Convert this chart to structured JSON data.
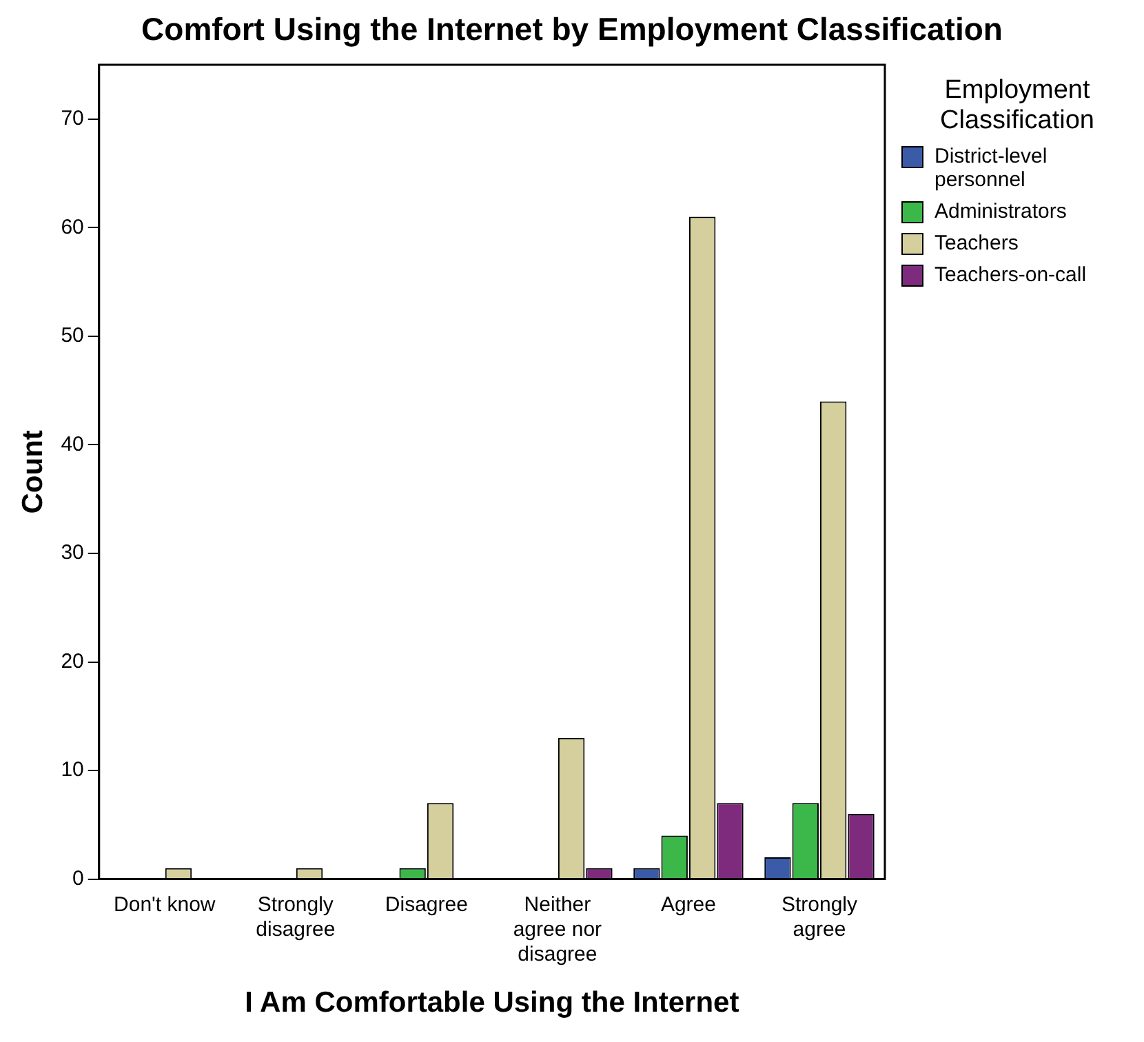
{
  "chart_data": {
    "type": "bar",
    "title": "Comfort Using the Internet by Employment Classification",
    "xlabel": "I Am Comfortable Using the Internet",
    "ylabel": "Count",
    "legend_title": "Employment Classification",
    "categories": [
      "Don't know",
      "Strongly disagree",
      "Disagree",
      "Neither agree nor disagree",
      "Agree",
      "Strongly agree"
    ],
    "series": [
      {
        "name": "District-level personnel",
        "color": "#3b5ba8",
        "values": [
          null,
          null,
          null,
          null,
          1,
          2
        ]
      },
      {
        "name": "Administrators",
        "color": "#3cb84a",
        "values": [
          null,
          null,
          1,
          null,
          4,
          7
        ]
      },
      {
        "name": "Teachers",
        "color": "#d4cf9c",
        "values": [
          1,
          1,
          7,
          13,
          61,
          44
        ]
      },
      {
        "name": "Teachers-on-call",
        "color": "#7e2a7d",
        "values": [
          null,
          null,
          null,
          1,
          7,
          6
        ]
      }
    ],
    "ylim": [
      0,
      75
    ],
    "yticks": [
      0,
      10,
      20,
      30,
      40,
      50,
      60,
      70
    ],
    "grid": false,
    "legend": "right"
  }
}
